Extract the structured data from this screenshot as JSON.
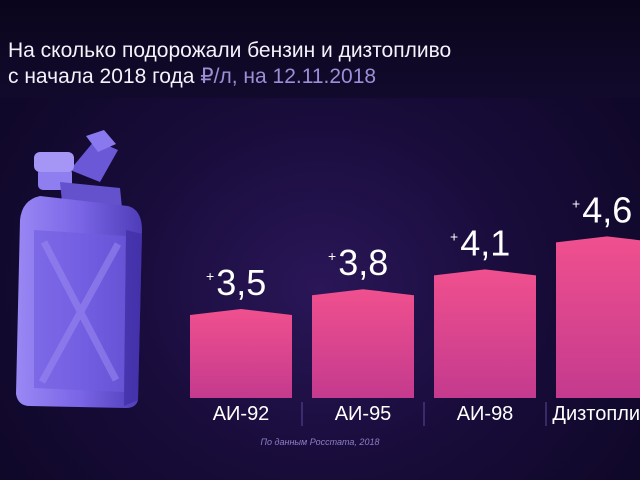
{
  "title": {
    "line1": "На сколько подорожали бензин и дизтопливо",
    "line2": "с начала 2018 года",
    "unit": "₽/л, на 12.11.2018"
  },
  "source": "По данным Росстата, 2018",
  "colors": {
    "bar_top": "#f0508e",
    "bar_bottom": "#c43a8e",
    "background": "#180c3a",
    "jerrycan": "#7a66e6"
  },
  "icons": [
    "jerrycan-icon"
  ],
  "chart_data": {
    "type": "bar",
    "title": "На сколько подорожали бензин и дизтопливо с начала 2018 года",
    "ylabel": "₽/л, на 12.11.2018",
    "categories": [
      "АИ-92",
      "АИ-95",
      "АИ-98",
      "Дизтопливо"
    ],
    "values": [
      3.5,
      3.8,
      4.1,
      4.6
    ],
    "value_labels": [
      "3,5",
      "3,8",
      "4,1",
      "4,6"
    ],
    "value_prefix": "+",
    "grid": false,
    "legend": "none"
  }
}
